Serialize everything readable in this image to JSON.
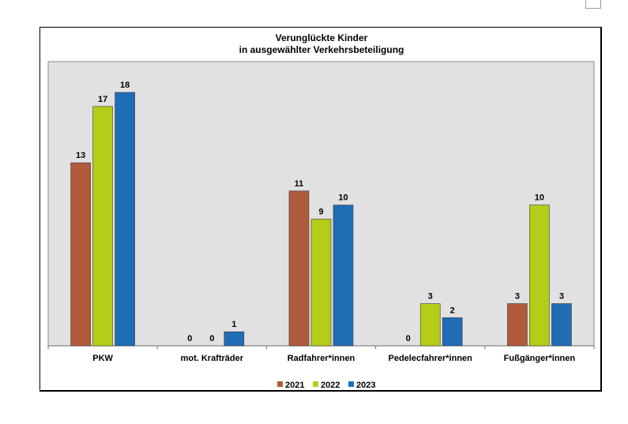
{
  "chart_data": {
    "type": "bar",
    "title": "Verunglückte Kinder",
    "subtitle": "in ausgewählter Verkehrsbeteiligung",
    "categories": [
      "PKW",
      "mot. Krafträder",
      "Radfahrer*innen",
      "Pedelecfahrer*innen",
      "Fußgänger*innen"
    ],
    "series": [
      {
        "name": "2021",
        "color": "#b05a3c",
        "values": [
          13,
          0,
          11,
          0,
          3
        ]
      },
      {
        "name": "2022",
        "color": "#b5cc18",
        "values": [
          17,
          0,
          9,
          3,
          10
        ]
      },
      {
        "name": "2023",
        "color": "#1f6db5",
        "values": [
          18,
          1,
          10,
          2,
          3
        ]
      }
    ],
    "ylim": [
      0,
      18
    ],
    "grid": false,
    "legend": "bottom-center",
    "plot_background": "#e1e1e1"
  }
}
